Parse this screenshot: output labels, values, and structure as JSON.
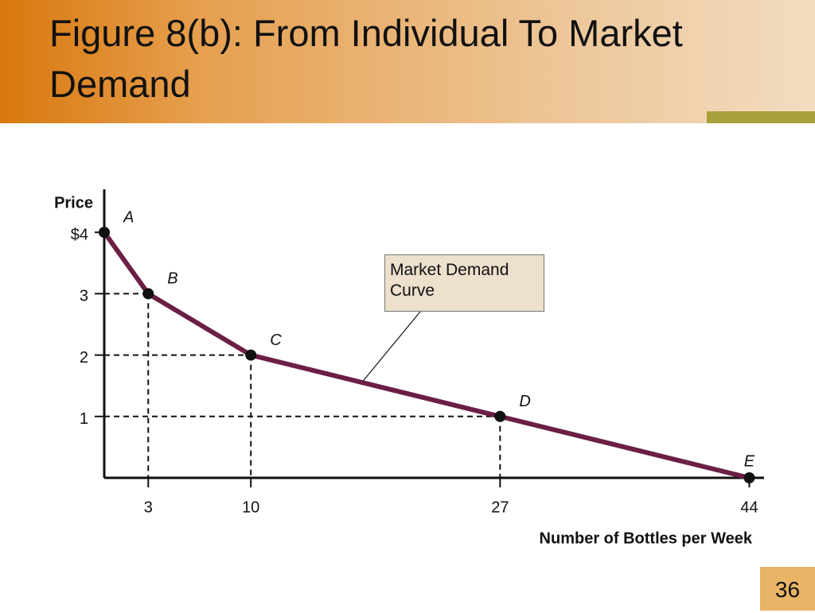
{
  "chart_data": {
    "type": "line",
    "title": "Figure 8(b):  From Individual To Market Demand",
    "y_label": "Price",
    "x_label": "Number of Bottles per Week",
    "annotation": "Market Demand Curve",
    "x": [
      0,
      3,
      10,
      27,
      44
    ],
    "point_labels": [
      "A",
      "B",
      "C",
      "D",
      "E"
    ],
    "series": [
      {
        "color": "#6b1f45",
        "values": [
          4,
          3,
          2,
          1,
          0
        ]
      }
    ],
    "xlim": [
      0,
      45
    ],
    "xticks": [
      3,
      10,
      27,
      44
    ],
    "ylim": [
      0,
      4.7
    ],
    "yticks": [
      {
        "value": 4,
        "label": "$4"
      },
      3,
      2,
      1
    ]
  },
  "slide_number": "36"
}
